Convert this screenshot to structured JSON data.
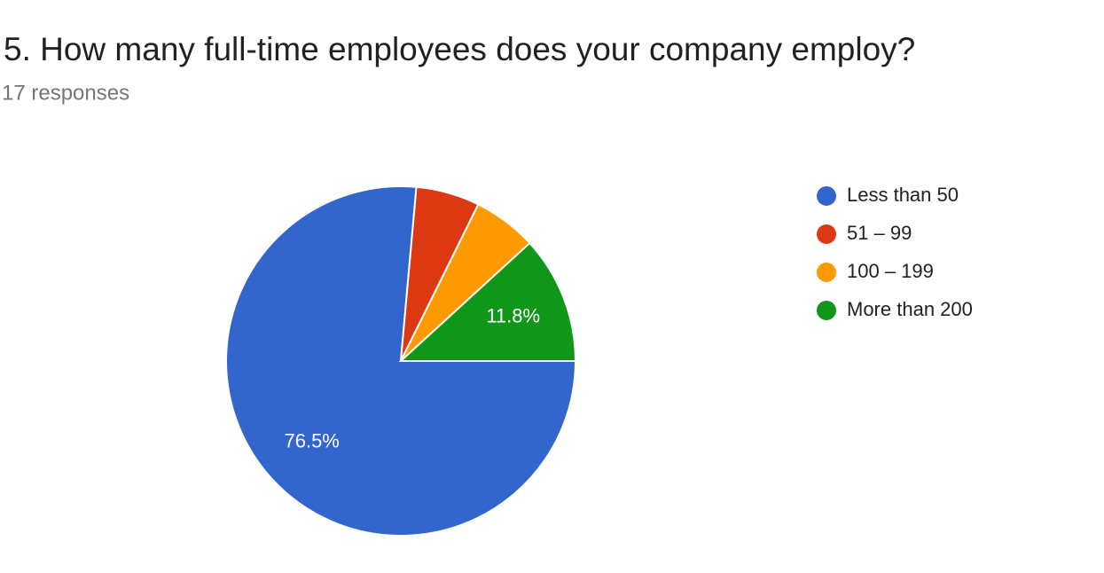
{
  "chart_data": {
    "type": "pie",
    "title": "5. How many full-time employees does your company employ?",
    "subtitle": "17 responses",
    "categories": [
      "Less than 50",
      "51 – 99",
      "100 – 199",
      "More than 200"
    ],
    "values": [
      76.5,
      5.9,
      5.9,
      11.8
    ],
    "value_labels": [
      "76.5%",
      null,
      null,
      "11.8%"
    ],
    "colors": [
      "#3366cc",
      "#dc3912",
      "#ff9900",
      "#109618"
    ],
    "legend": "right"
  }
}
